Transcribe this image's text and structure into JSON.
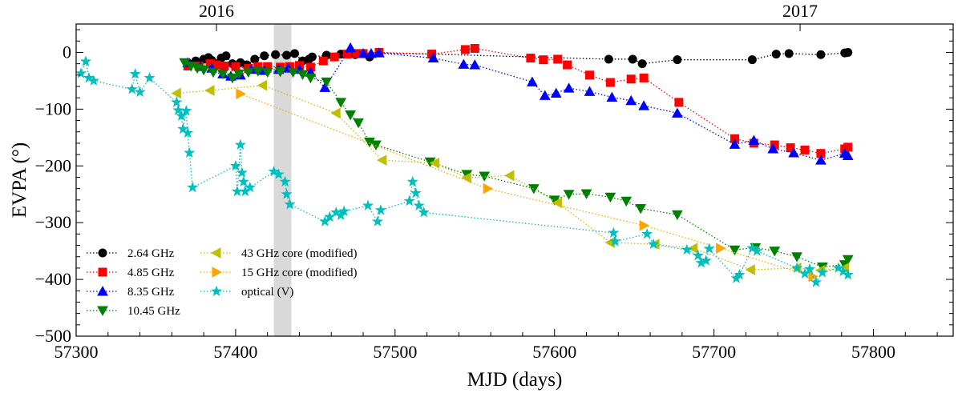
{
  "chart_data": {
    "type": "scatter",
    "xlabel": "MJD (days)",
    "ylabel": "EVPA (°)",
    "xlim": [
      57300,
      57850
    ],
    "ylim": [
      -500,
      50
    ],
    "x_ticks": [
      57300,
      57400,
      57500,
      57600,
      57700,
      57800
    ],
    "y_ticks": [
      -500,
      -400,
      -300,
      -200,
      -100,
      0
    ],
    "top_axis": {
      "labels": [
        {
          "text": "2016",
          "x": 57388
        },
        {
          "text": "2017",
          "x": 57754
        }
      ]
    },
    "shaded_region": {
      "x0": 57424,
      "x1": 57435,
      "color": "#d9d9d9"
    },
    "legend_location": "lower-left",
    "series": [
      {
        "name": "2.64 GHz",
        "color": "#000000",
        "marker": "circle",
        "points": [
          [
            57370,
            -18
          ],
          [
            57375,
            -15
          ],
          [
            57380,
            -12
          ],
          [
            57383,
            -9
          ],
          [
            57385,
            -14
          ],
          [
            57388,
            -20
          ],
          [
            57391,
            -10
          ],
          [
            57394,
            -6
          ],
          [
            57398,
            -20
          ],
          [
            57403,
            -18
          ],
          [
            57407,
            -22
          ],
          [
            57412,
            -12
          ],
          [
            57418,
            -6
          ],
          [
            57425,
            -4
          ],
          [
            57432,
            -5
          ],
          [
            57437,
            -2
          ],
          [
            57442,
            -15
          ],
          [
            57446,
            -12
          ],
          [
            57448,
            -8
          ],
          [
            57457,
            -5
          ],
          [
            57466,
            -3
          ],
          [
            57470,
            -3
          ],
          [
            57475,
            -4
          ],
          [
            57480,
            -2
          ],
          [
            57484,
            -8
          ],
          [
            57490,
            -1
          ],
          [
            57523,
            -3
          ],
          [
            57634,
            -12
          ],
          [
            57649,
            -12
          ],
          [
            57655,
            -20
          ],
          [
            57677,
            -13
          ],
          [
            57724,
            -13
          ],
          [
            57739,
            -3
          ],
          [
            57747,
            -2
          ],
          [
            57767,
            -4
          ],
          [
            57782,
            -1
          ],
          [
            57784,
            0
          ]
        ]
      },
      {
        "name": "4.85 GHz",
        "color": "#ff0000",
        "marker": "square",
        "points": [
          [
            57370,
            -24
          ],
          [
            57377,
            -24
          ],
          [
            57384,
            -20
          ],
          [
            57388,
            -22
          ],
          [
            57393,
            -24
          ],
          [
            57400,
            -25
          ],
          [
            57408,
            -28
          ],
          [
            57414,
            -25
          ],
          [
            57420,
            -25
          ],
          [
            57428,
            -26
          ],
          [
            57434,
            -25
          ],
          [
            57440,
            -23
          ],
          [
            57447,
            -26
          ],
          [
            57455,
            -15
          ],
          [
            57462,
            -8
          ],
          [
            57470,
            -3
          ],
          [
            57476,
            -2
          ],
          [
            57480,
            -2
          ],
          [
            57490,
            0
          ],
          [
            57523,
            -3
          ],
          [
            57544,
            5
          ],
          [
            57550,
            7
          ],
          [
            57585,
            -10
          ],
          [
            57593,
            -13
          ],
          [
            57602,
            -12
          ],
          [
            57608,
            -22
          ],
          [
            57622,
            -40
          ],
          [
            57635,
            -53
          ],
          [
            57648,
            -47
          ],
          [
            57656,
            -45
          ],
          [
            57678,
            -88
          ],
          [
            57713,
            -152
          ],
          [
            57725,
            -160
          ],
          [
            57738,
            -163
          ],
          [
            57748,
            -168
          ],
          [
            57757,
            -172
          ],
          [
            57767,
            -178
          ],
          [
            57782,
            -170
          ],
          [
            57784,
            -167
          ]
        ]
      },
      {
        "name": "8.35 GHz",
        "color": "#0000ff",
        "marker": "triangle-up",
        "points": [
          [
            57370,
            -18
          ],
          [
            57378,
            -25
          ],
          [
            57385,
            -28
          ],
          [
            57392,
            -38
          ],
          [
            57397,
            -42
          ],
          [
            57403,
            -40
          ],
          [
            57410,
            -30
          ],
          [
            57418,
            -32
          ],
          [
            57427,
            -30
          ],
          [
            57433,
            -28
          ],
          [
            57440,
            -30
          ],
          [
            57447,
            -35
          ],
          [
            57456,
            -62
          ],
          [
            57472,
            8
          ],
          [
            57480,
            -2
          ],
          [
            57485,
            -2
          ],
          [
            57490,
            -1
          ],
          [
            57524,
            -10
          ],
          [
            57543,
            -21
          ],
          [
            57550,
            -22
          ],
          [
            57586,
            -52
          ],
          [
            57594,
            -76
          ],
          [
            57601,
            -72
          ],
          [
            57609,
            -63
          ],
          [
            57622,
            -69
          ],
          [
            57636,
            -79
          ],
          [
            57648,
            -85
          ],
          [
            57656,
            -94
          ],
          [
            57677,
            -107
          ],
          [
            57713,
            -162
          ],
          [
            57725,
            -155
          ],
          [
            57737,
            -170
          ],
          [
            57750,
            -177
          ],
          [
            57767,
            -190
          ],
          [
            57782,
            -178
          ],
          [
            57784,
            -182
          ]
        ]
      },
      {
        "name": "10.45 GHz",
        "color": "#008000",
        "marker": "triangle-down",
        "points": [
          [
            57368,
            -18
          ],
          [
            57372,
            -24
          ],
          [
            57376,
            -28
          ],
          [
            57380,
            -31
          ],
          [
            57386,
            -35
          ],
          [
            57392,
            -38
          ],
          [
            57398,
            -45
          ],
          [
            57402,
            -38
          ],
          [
            57408,
            -35
          ],
          [
            57414,
            -33
          ],
          [
            57420,
            -35
          ],
          [
            57428,
            -34
          ],
          [
            57436,
            -35
          ],
          [
            57442,
            -39
          ],
          [
            57447,
            -45
          ],
          [
            57457,
            -52
          ],
          [
            57466,
            -88
          ],
          [
            57472,
            -110
          ],
          [
            57477,
            -124
          ],
          [
            57484,
            -158
          ],
          [
            57488,
            -163
          ],
          [
            57522,
            -193
          ],
          [
            57545,
            -215
          ],
          [
            57556,
            -218
          ],
          [
            57587,
            -240
          ],
          [
            57600,
            -260
          ],
          [
            57609,
            -250
          ],
          [
            57620,
            -249
          ],
          [
            57635,
            -255
          ],
          [
            57645,
            -262
          ],
          [
            57654,
            -275
          ],
          [
            57677,
            -286
          ],
          [
            57713,
            -348
          ],
          [
            57726,
            -344
          ],
          [
            57738,
            -350
          ],
          [
            57752,
            -360
          ],
          [
            57768,
            -378
          ],
          [
            57782,
            -374
          ],
          [
            57784,
            -365
          ]
        ]
      },
      {
        "name": "43 GHz core (modified)",
        "color": "#bfbf00",
        "marker": "triangle-left",
        "points": [
          [
            57363,
            -72
          ],
          [
            57384,
            -67
          ],
          [
            57417,
            -58
          ],
          [
            57463,
            -107
          ],
          [
            57492,
            -190
          ],
          [
            57525,
            -195
          ],
          [
            57545,
            -221
          ],
          [
            57572,
            -217
          ],
          [
            57602,
            -265
          ],
          [
            57635,
            -335
          ],
          [
            57663,
            -338
          ],
          [
            57687,
            -345
          ],
          [
            57723,
            -383
          ],
          [
            57752,
            -380
          ],
          [
            57767,
            -384
          ],
          [
            57782,
            -380
          ]
        ]
      },
      {
        "name": "15 GHz core (modified)",
        "color": "#ffa500",
        "marker": "triangle-right",
        "points": [
          [
            57403,
            -73
          ],
          [
            57558,
            -240
          ],
          [
            57656,
            -305
          ],
          [
            57704,
            -345
          ],
          [
            57762,
            -395
          ]
        ]
      },
      {
        "name": "optical (V)",
        "color": "#00bfbf",
        "marker": "star",
        "points": [
          [
            57303,
            -37
          ],
          [
            57306,
            -16
          ],
          [
            57308,
            -45
          ],
          [
            57311,
            -50
          ],
          [
            57335,
            -65
          ],
          [
            57337,
            -38
          ],
          [
            57340,
            -70
          ],
          [
            57346,
            -45
          ],
          [
            57363,
            -88
          ],
          [
            57364,
            -102
          ],
          [
            57366,
            -112
          ],
          [
            57367,
            -135
          ],
          [
            57369,
            -103
          ],
          [
            57370,
            -142
          ],
          [
            57371,
            -177
          ],
          [
            57373,
            -238
          ],
          [
            57400,
            -200
          ],
          [
            57401,
            -245
          ],
          [
            57403,
            -163
          ],
          [
            57404,
            -212
          ],
          [
            57405,
            -228
          ],
          [
            57406,
            -245
          ],
          [
            57409,
            -238
          ],
          [
            57424,
            -210
          ],
          [
            57427,
            -215
          ],
          [
            57431,
            -228
          ],
          [
            57432,
            -250
          ],
          [
            57434,
            -268
          ],
          [
            57456,
            -298
          ],
          [
            57459,
            -290
          ],
          [
            57463,
            -282
          ],
          [
            57466,
            -287
          ],
          [
            57468,
            -280
          ],
          [
            57483,
            -270
          ],
          [
            57489,
            -298
          ],
          [
            57491,
            -278
          ],
          [
            57509,
            -262
          ],
          [
            57511,
            -228
          ],
          [
            57513,
            -248
          ],
          [
            57515,
            -270
          ],
          [
            57518,
            -282
          ],
          [
            57637,
            -318
          ],
          [
            57638,
            -333
          ],
          [
            57658,
            -320
          ],
          [
            57662,
            -338
          ],
          [
            57683,
            -348
          ],
          [
            57690,
            -358
          ],
          [
            57692,
            -371
          ],
          [
            57695,
            -367
          ],
          [
            57697,
            -346
          ],
          [
            57714,
            -398
          ],
          [
            57716,
            -392
          ],
          [
            57724,
            -345
          ],
          [
            57727,
            -350
          ],
          [
            57752,
            -380
          ],
          [
            57757,
            -390
          ],
          [
            57760,
            -382
          ],
          [
            57764,
            -405
          ],
          [
            57768,
            -388
          ],
          [
            57778,
            -380
          ],
          [
            57781,
            -386
          ],
          [
            57784,
            -392
          ]
        ]
      }
    ]
  }
}
